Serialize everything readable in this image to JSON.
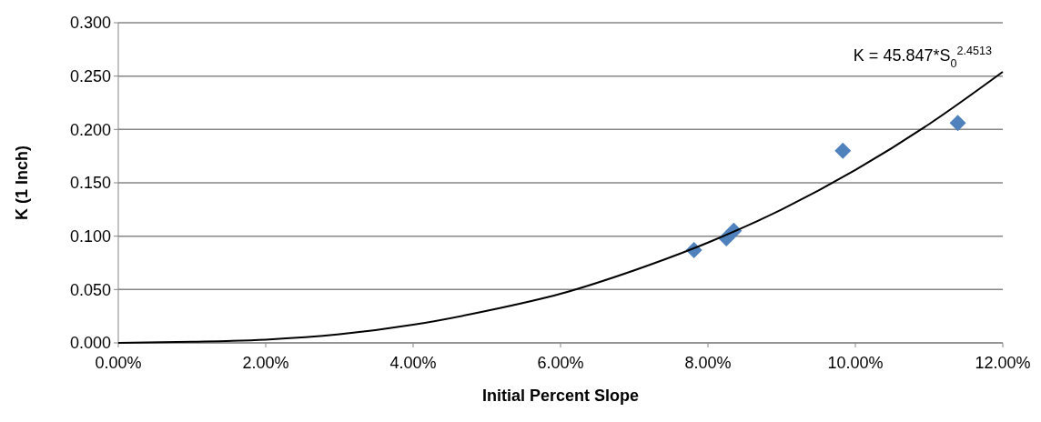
{
  "chart_data": {
    "type": "scatter",
    "xlabel": "Initial Percent Slope",
    "ylabel": "K (1 Inch)",
    "annotations": [
      "K = 45.847*S$_{0}$$^{2.4513}$"
    ],
    "series": [
      {
        "color": "#4f81bd",
        "marker": "diamond",
        "x": [
          7.81,
          8.25,
          8.35,
          9.83,
          11.39
        ],
        "values": [
          0.087,
          0.098,
          0.105,
          0.18,
          0.206
        ]
      },
      {
        "type": "line",
        "color": "#000000",
        "marker": "none",
        "x": [
          0,
          1,
          2,
          3,
          4,
          5,
          6,
          7,
          8,
          9,
          10,
          11,
          12
        ],
        "values": [
          0,
          0.001,
          0.003,
          0.008,
          0.017,
          0.03,
          0.046,
          0.068,
          0.094,
          0.125,
          0.162,
          0.205,
          0.254
        ]
      }
    ],
    "xlim": [
      0,
      12
    ],
    "ylim": [
      0,
      0.3
    ],
    "xticks": [
      {
        "value": 0,
        "label": "0.00%"
      },
      {
        "value": 2,
        "label": "2.00%"
      },
      {
        "value": 4,
        "label": "4.00%"
      },
      {
        "value": 6,
        "label": "6.00%"
      },
      {
        "value": 8,
        "label": "8.00%"
      },
      {
        "value": 10,
        "label": "10.00%"
      },
      {
        "value": 12,
        "label": "12.00%"
      }
    ],
    "yticks": [
      {
        "value": 0,
        "label": "0.000"
      },
      {
        "value": 0.05,
        "label": "0.050"
      },
      {
        "value": 0.1,
        "label": "0.100"
      },
      {
        "value": 0.15,
        "label": "0.150"
      },
      {
        "value": 0.2,
        "label": "0.200"
      },
      {
        "value": 0.25,
        "label": "0.250"
      },
      {
        "value": 0.3,
        "label": "0.300"
      }
    ],
    "grid": "y"
  }
}
